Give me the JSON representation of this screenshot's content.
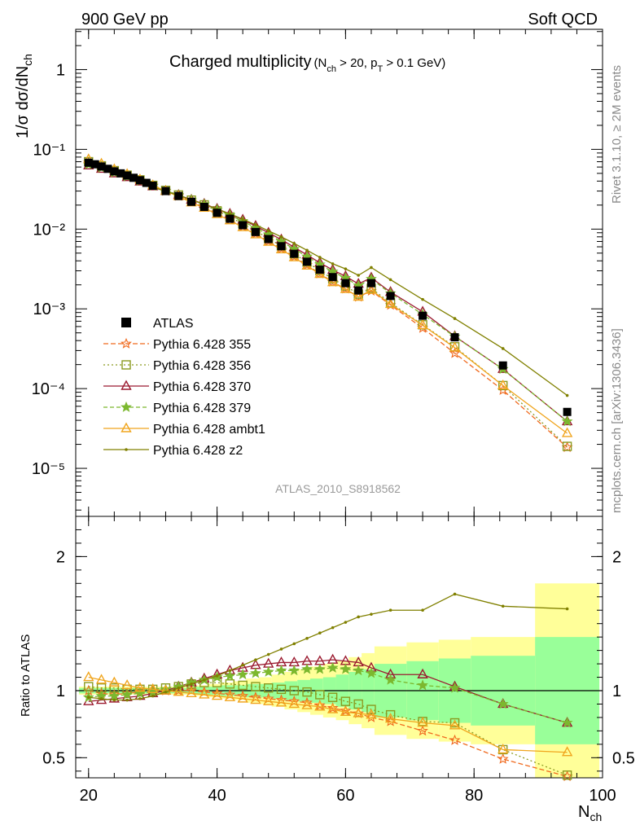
{
  "header": {
    "left": "900 GeV pp",
    "right": "Soft QCD"
  },
  "side_labels": {
    "rivet": "Rivet 3.1.10, ≥ 2M events",
    "mcplots": "mcplots.cern.ch [arXiv:1306.3436]"
  },
  "analysis_id": "ATLAS_2010_S8918562",
  "title": {
    "main": "Charged multiplicity",
    "cuts": "(N",
    "cuts_sub": "ch",
    "cuts_mid": " > 20, p",
    "cuts_sub2": "T",
    "cuts_end": " > 0.1 GeV)"
  },
  "axes": {
    "ylabel_main": "1/σ dσ/dN",
    "ylabel_sub": "ch",
    "ylabel_ratio": "Ratio to ATLAS",
    "xlabel_main": "N",
    "xlabel_sub": "ch"
  },
  "chart_data": {
    "type": "line",
    "x_axis": {
      "min": 18,
      "max": 100,
      "ticks": [
        20,
        40,
        60,
        80,
        100
      ]
    },
    "main_panel": {
      "y_scale": "log",
      "y_min": 2.5e-06,
      "y_max": 3.2,
      "y_ticks": [
        "1",
        "10⁻¹",
        "10⁻²",
        "10⁻³",
        "10⁻⁴",
        "10⁻⁵"
      ]
    },
    "ratio_panel": {
      "y_scale": "linear",
      "y_min": 0.35,
      "y_max": 2.3,
      "y_ticks": [
        0.5,
        1,
        2
      ],
      "reference_line": 1
    },
    "data": {
      "name": "ATLAS",
      "x": [
        20,
        21,
        22,
        23,
        24,
        25,
        26,
        27,
        28,
        29,
        30,
        32,
        34,
        36,
        38,
        40,
        42,
        44,
        46,
        48,
        50,
        52,
        54,
        56,
        58,
        60,
        62,
        64,
        67,
        72,
        77,
        84.5,
        94.5
      ],
      "y": [
        0.068,
        0.065,
        0.061,
        0.057,
        0.053,
        0.05,
        0.047,
        0.044,
        0.041,
        0.038,
        0.035,
        0.03,
        0.026,
        0.022,
        0.019,
        0.016,
        0.0135,
        0.0112,
        0.0092,
        0.0075,
        0.0061,
        0.0049,
        0.0039,
        0.0031,
        0.0025,
        0.0021,
        0.0017,
        0.0021,
        0.00145,
        0.00082,
        0.00044,
        0.000195,
        5.1e-05
      ]
    },
    "series": [
      {
        "name": "Pythia 6.428 355",
        "color": "#f06a1e",
        "marker": "star-open",
        "dash": "6,3",
        "x": [
          20,
          22,
          24,
          26,
          28,
          30,
          32,
          34,
          36,
          38,
          40,
          42,
          44,
          46,
          48,
          50,
          52,
          54,
          56,
          58,
          60,
          62,
          64,
          67,
          72,
          77,
          84.5,
          94.5
        ],
        "ratio": [
          1.0,
          0.98,
          0.97,
          0.98,
          0.99,
          1.0,
          1.0,
          1.0,
          1.0,
          0.99,
          0.98,
          0.97,
          0.96,
          0.95,
          0.94,
          0.93,
          0.92,
          0.91,
          0.89,
          0.87,
          0.85,
          0.83,
          0.8,
          0.77,
          0.7,
          0.63,
          0.49,
          0.36
        ]
      },
      {
        "name": "Pythia 6.428 356",
        "color": "#8a9a1f",
        "marker": "square-open",
        "dash": "2,3",
        "x": [
          20,
          22,
          24,
          26,
          28,
          30,
          32,
          34,
          36,
          38,
          40,
          42,
          44,
          46,
          48,
          50,
          52,
          54,
          56,
          58,
          60,
          62,
          64,
          67,
          72,
          77,
          84.5,
          94.5
        ],
        "ratio": [
          1.03,
          1.02,
          1.02,
          1.01,
          1.01,
          1.01,
          1.02,
          1.03,
          1.05,
          1.06,
          1.06,
          1.05,
          1.04,
          1.03,
          1.02,
          1.01,
          1.0,
          0.99,
          0.97,
          0.95,
          0.92,
          0.9,
          0.86,
          0.82,
          0.77,
          0.76,
          0.56,
          0.37
        ]
      },
      {
        "name": "Pythia 6.428 370",
        "color": "#9b1b30",
        "marker": "triangle-open",
        "dash": "",
        "x": [
          20,
          22,
          24,
          26,
          28,
          30,
          32,
          34,
          36,
          38,
          40,
          42,
          44,
          46,
          48,
          50,
          52,
          54,
          56,
          58,
          60,
          62,
          64,
          67,
          72,
          77,
          84.5,
          94.5
        ],
        "ratio": [
          0.92,
          0.93,
          0.94,
          0.95,
          0.96,
          0.98,
          1.0,
          1.03,
          1.06,
          1.09,
          1.12,
          1.15,
          1.17,
          1.19,
          1.2,
          1.21,
          1.21,
          1.22,
          1.22,
          1.23,
          1.22,
          1.21,
          1.17,
          1.12,
          1.12,
          1.03,
          0.9,
          0.76
        ]
      },
      {
        "name": "Pythia 6.428 379",
        "color": "#7cb82f",
        "marker": "star-filled",
        "dash": "5,3",
        "x": [
          20,
          22,
          24,
          26,
          28,
          30,
          32,
          34,
          36,
          38,
          40,
          42,
          44,
          46,
          48,
          50,
          52,
          54,
          56,
          58,
          60,
          62,
          64,
          67,
          72,
          77,
          84.5,
          94.5
        ],
        "ratio": [
          0.95,
          0.96,
          0.96,
          0.97,
          0.98,
          0.99,
          1.01,
          1.03,
          1.06,
          1.08,
          1.1,
          1.11,
          1.12,
          1.13,
          1.14,
          1.15,
          1.15,
          1.16,
          1.16,
          1.17,
          1.16,
          1.15,
          1.13,
          1.08,
          1.04,
          1.02,
          0.9,
          0.76
        ]
      },
      {
        "name": "Pythia 6.428 ambt1",
        "color": "#f0a51e",
        "marker": "triangle-open",
        "dash": "",
        "x": [
          20,
          22,
          24,
          26,
          28,
          30,
          32,
          34,
          36,
          38,
          40,
          42,
          44,
          46,
          48,
          50,
          52,
          54,
          56,
          58,
          60,
          62,
          64,
          67,
          72,
          77,
          84.5,
          94.5
        ],
        "ratio": [
          1.1,
          1.08,
          1.06,
          1.04,
          1.02,
          1.01,
          1.0,
          0.99,
          0.98,
          0.97,
          0.96,
          0.95,
          0.94,
          0.93,
          0.92,
          0.91,
          0.9,
          0.89,
          0.88,
          0.86,
          0.84,
          0.83,
          0.82,
          0.79,
          0.76,
          0.74,
          0.56,
          0.54
        ]
      },
      {
        "name": "Pythia 6.428 z2",
        "color": "#808000",
        "marker": "dot",
        "dash": "",
        "x": [
          20,
          22,
          24,
          26,
          28,
          30,
          32,
          34,
          36,
          38,
          40,
          42,
          44,
          46,
          48,
          50,
          52,
          54,
          56,
          58,
          60,
          62,
          64,
          67,
          72,
          77,
          84.5,
          94.5
        ],
        "ratio": [
          0.95,
          0.94,
          0.93,
          0.93,
          0.94,
          0.96,
          0.99,
          1.02,
          1.05,
          1.08,
          1.11,
          1.15,
          1.19,
          1.23,
          1.27,
          1.31,
          1.35,
          1.39,
          1.43,
          1.47,
          1.51,
          1.55,
          1.57,
          1.6,
          1.6,
          1.72,
          1.63,
          1.61
        ]
      }
    ],
    "uncertainty_bands": {
      "inner_color": "#99ff99",
      "outer_color": "#ffff99",
      "edges": [
        18.5,
        20.5,
        22.5,
        24.5,
        26.5,
        28.5,
        30.5,
        32.5,
        34.5,
        36.5,
        38.5,
        40.5,
        42.5,
        44.5,
        46.5,
        48.5,
        50.5,
        52.5,
        54.5,
        56.5,
        58.5,
        60.5,
        62.5,
        64.5,
        69.5,
        74.5,
        79.5,
        89.5,
        99.5
      ],
      "inner": [
        0.02,
        0.02,
        0.02,
        0.02,
        0.02,
        0.02,
        0.02,
        0.02,
        0.02,
        0.03,
        0.03,
        0.04,
        0.04,
        0.05,
        0.05,
        0.06,
        0.07,
        0.08,
        0.09,
        0.1,
        0.12,
        0.14,
        0.16,
        0.2,
        0.22,
        0.24,
        0.26,
        0.4
      ],
      "outer": [
        0.03,
        0.03,
        0.03,
        0.03,
        0.03,
        0.03,
        0.03,
        0.03,
        0.03,
        0.04,
        0.05,
        0.06,
        0.07,
        0.09,
        0.1,
        0.12,
        0.14,
        0.16,
        0.18,
        0.2,
        0.22,
        0.25,
        0.28,
        0.33,
        0.36,
        0.38,
        0.4,
        0.8
      ]
    }
  }
}
